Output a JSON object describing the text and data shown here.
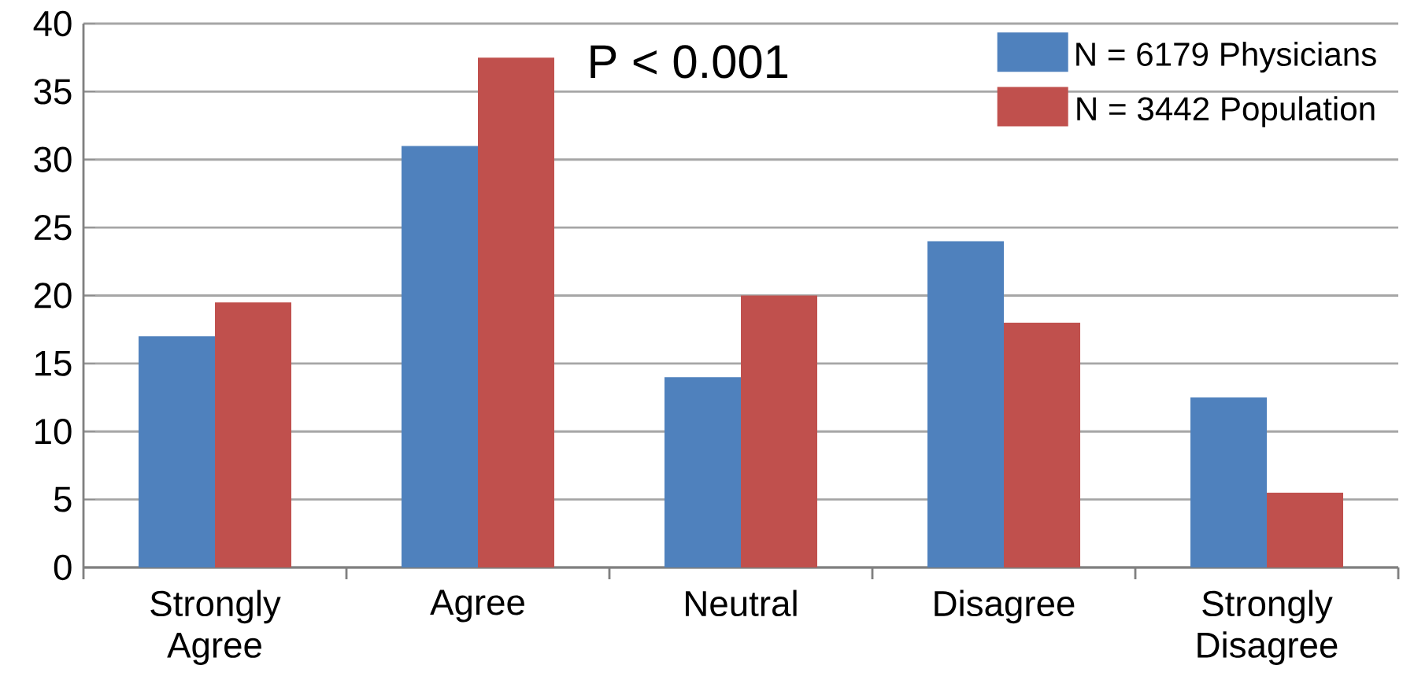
{
  "chart_data": {
    "type": "bar",
    "categories": [
      "Strongly Agree",
      "Agree",
      "Neutral",
      "Disagree",
      "Strongly Disagree"
    ],
    "series": [
      {
        "name": "N = 6179 Physicians",
        "color": "#4f81bd",
        "values": [
          17,
          31,
          14,
          24,
          12.5
        ]
      },
      {
        "name": "N = 3442 Population",
        "color": "#c0504d",
        "values": [
          19.5,
          37.5,
          20,
          18,
          5.5
        ]
      }
    ],
    "ylim": [
      0,
      40
    ],
    "yticks": [
      0,
      5,
      10,
      15,
      20,
      25,
      30,
      35,
      40
    ],
    "grid": "y",
    "legend": "top right",
    "annotations": [
      "P < 0.001"
    ]
  }
}
